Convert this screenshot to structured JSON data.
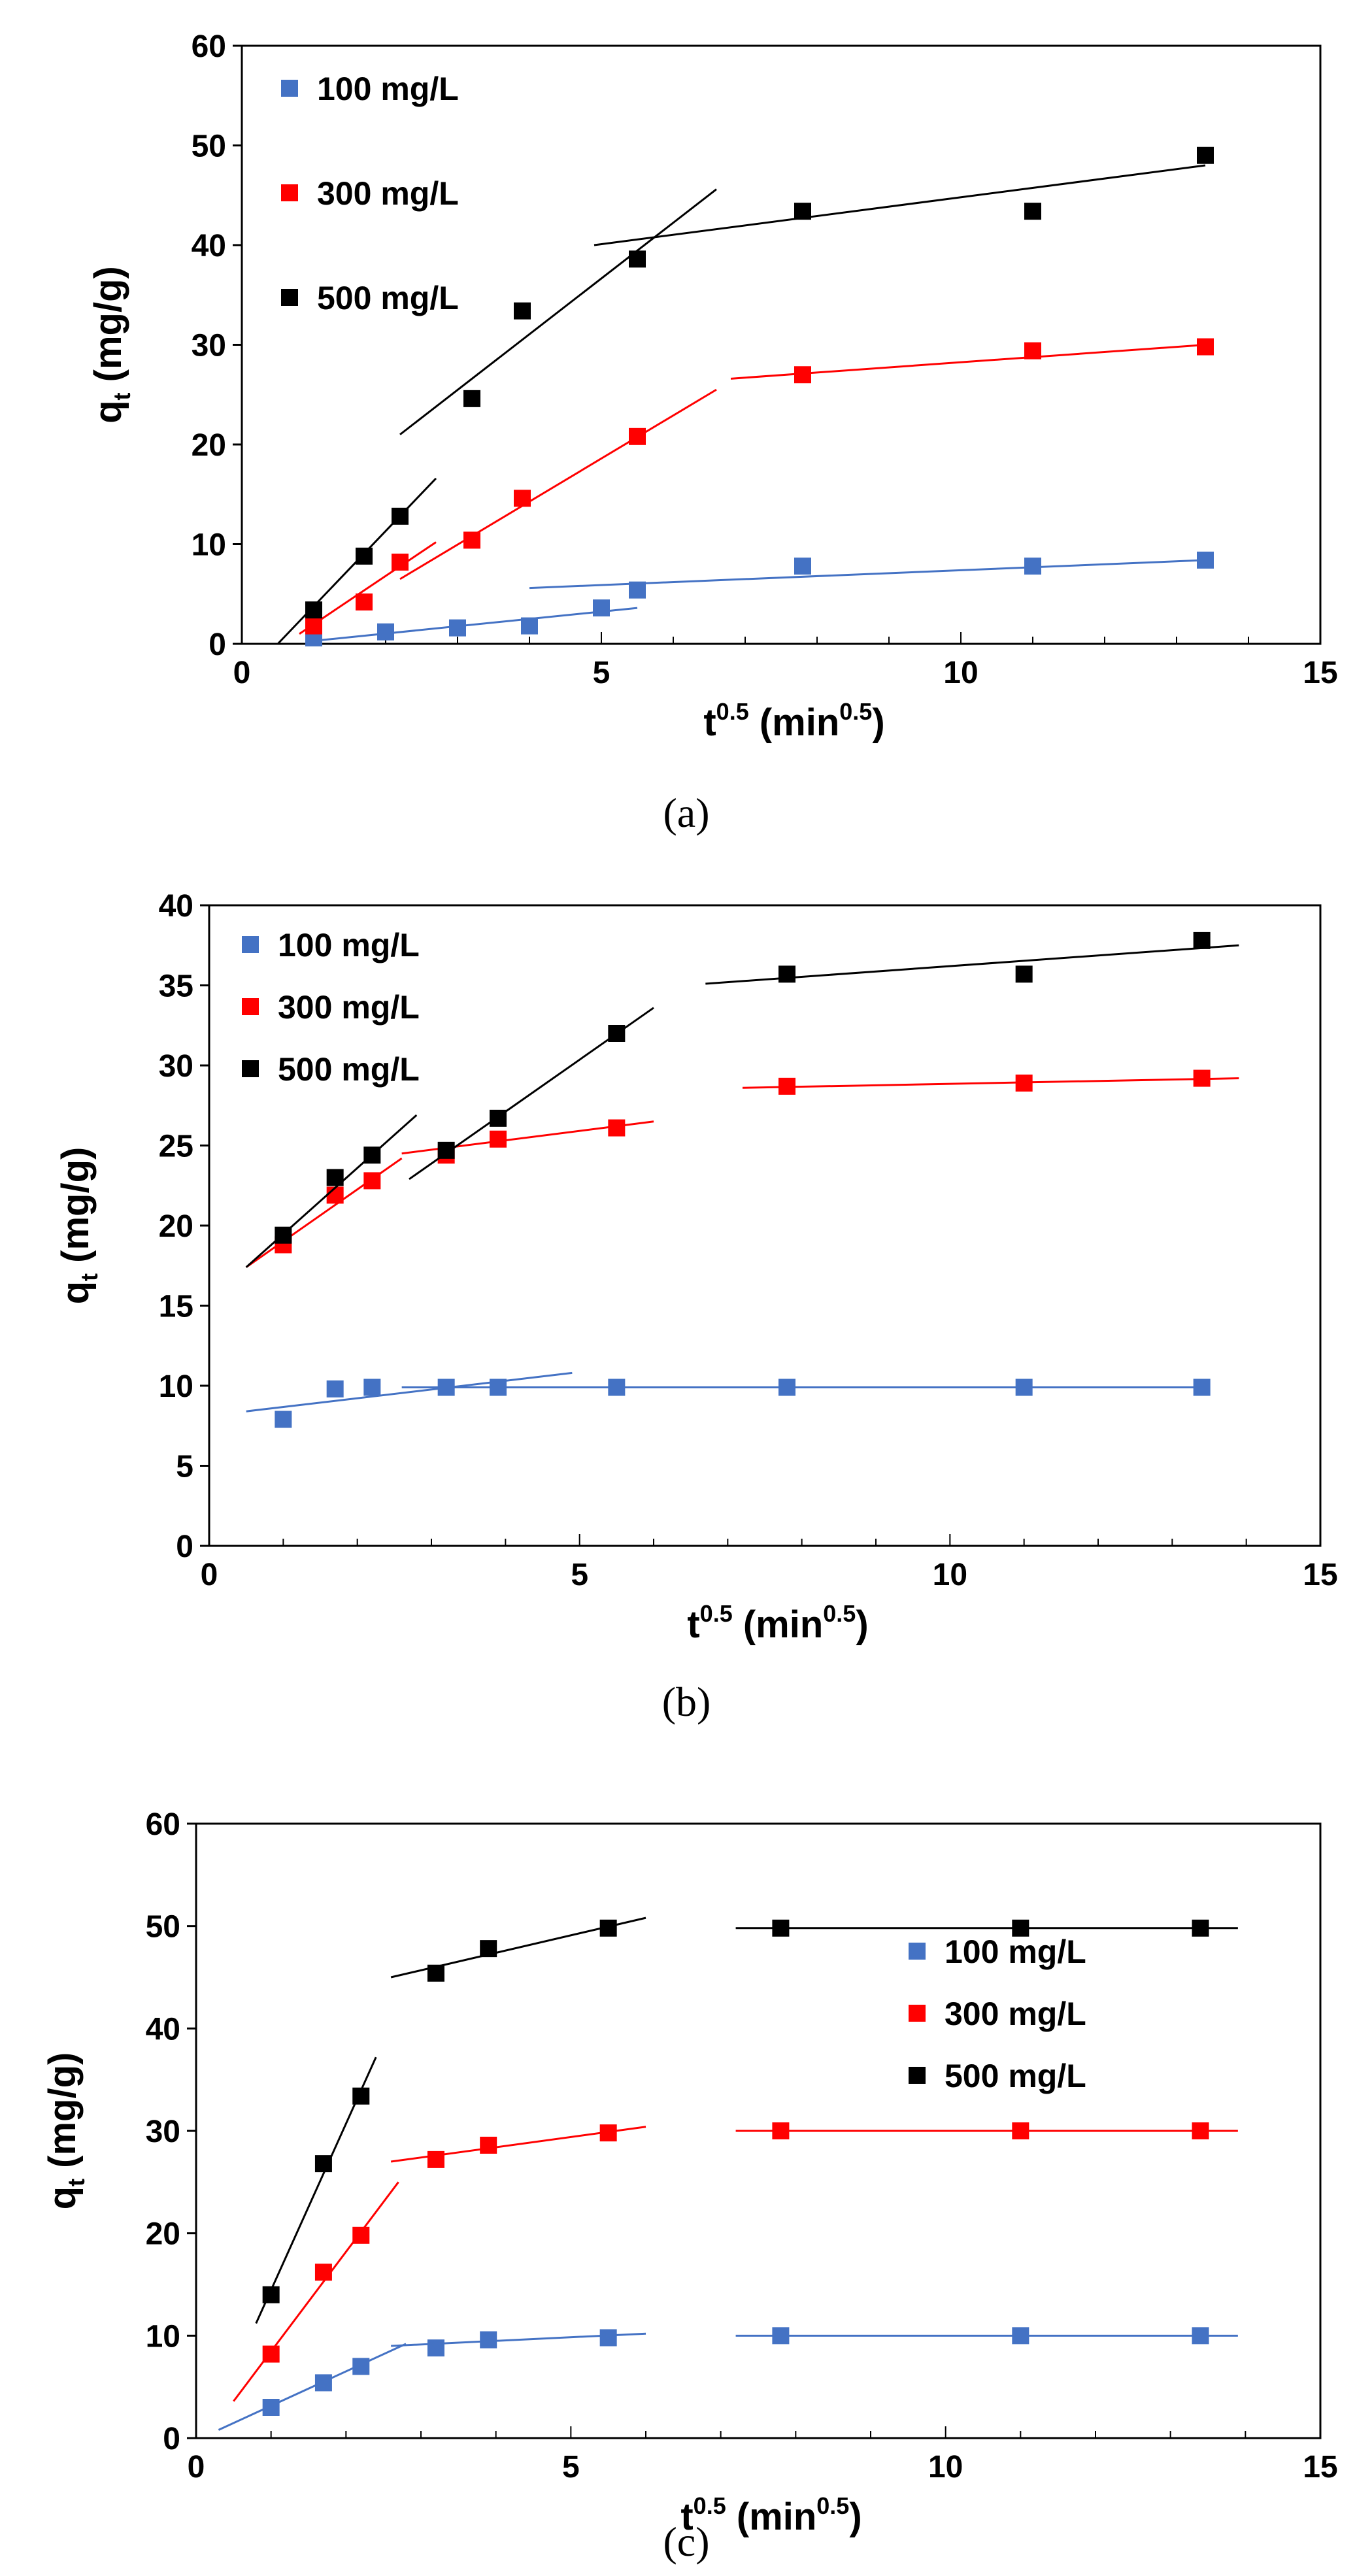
{
  "colors": {
    "c100": "#4472c4",
    "c300": "#ff0000",
    "c500": "#000000"
  },
  "chart_data": [
    {
      "type": "scatter",
      "panel": "a",
      "caption": "(a)",
      "ylabel_main": "q",
      "ylabel_sub": "t",
      "ylabel_unit": " (mg/g)",
      "xlabel_main": "t",
      "xlabel_sup": "0.5",
      "xlabel_mid": " (min",
      "xlabel_sup2": "0.5",
      "xlabel_end": ")",
      "xlim": [
        0,
        15
      ],
      "ylim": [
        0,
        60
      ],
      "xticks": [
        0,
        5,
        10,
        15
      ],
      "yticks": [
        0,
        10,
        20,
        30,
        40,
        50,
        60
      ],
      "xtick_labels": [
        "0",
        "5",
        "10",
        "15"
      ],
      "ytick_labels": [
        "0",
        "10",
        "20",
        "30",
        "40",
        "50",
        "60"
      ],
      "legend_position": "top-left",
      "series": [
        {
          "name": "100 mg/L",
          "color_key": "c100",
          "x": [
            1.0,
            2.0,
            3.0,
            4.0,
            5.0,
            5.5,
            7.8,
            11.0,
            13.4
          ],
          "y": [
            0.6,
            1.2,
            1.6,
            1.8,
            3.6,
            5.4,
            7.8,
            7.8,
            8.4
          ],
          "fits": [
            {
              "x": [
                1.0,
                5.5
              ],
              "y": [
                0.3,
                3.6
              ]
            },
            {
              "x": [
                4.0,
                13.4
              ],
              "y": [
                5.6,
                8.4
              ]
            }
          ]
        },
        {
          "name": "300 mg/L",
          "color_key": "c300",
          "x": [
            1.0,
            1.7,
            2.2,
            3.2,
            3.9,
            5.5,
            7.8,
            11.0,
            13.4
          ],
          "y": [
            1.8,
            4.2,
            8.2,
            10.4,
            14.6,
            20.8,
            27.0,
            29.4,
            29.8
          ],
          "fits": [
            {
              "x": [
                0.8,
                2.7
              ],
              "y": [
                1.0,
                10.2
              ]
            },
            {
              "x": [
                2.2,
                6.6
              ],
              "y": [
                6.5,
                25.5
              ]
            },
            {
              "x": [
                6.8,
                13.4
              ],
              "y": [
                26.6,
                30.0
              ]
            }
          ]
        },
        {
          "name": "500 mg/L",
          "color_key": "c500",
          "x": [
            1.0,
            1.7,
            2.2,
            3.2,
            3.9,
            5.5,
            7.8,
            11.0,
            13.4
          ],
          "y": [
            3.4,
            8.8,
            12.8,
            24.6,
            33.4,
            38.6,
            43.4,
            43.4,
            49.0
          ],
          "fits": [
            {
              "x": [
                0.5,
                2.7
              ],
              "y": [
                0.0,
                16.6
              ]
            },
            {
              "x": [
                2.2,
                6.6
              ],
              "y": [
                21.0,
                45.6
              ]
            },
            {
              "x": [
                4.9,
                13.4
              ],
              "y": [
                40.0,
                48.0
              ]
            }
          ]
        }
      ]
    },
    {
      "type": "scatter",
      "panel": "b",
      "caption": "(b)",
      "ylabel_main": "q",
      "ylabel_sub": "t",
      "ylabel_unit": " (mg/g)",
      "xlabel_main": "t",
      "xlabel_sup": "0.5",
      "xlabel_mid": " (min",
      "xlabel_sup2": "0.5",
      "xlabel_end": ")",
      "xlim": [
        0,
        15
      ],
      "ylim": [
        0,
        40
      ],
      "xticks": [
        0,
        5,
        10,
        15
      ],
      "yticks": [
        0,
        5,
        10,
        15,
        20,
        25,
        30,
        35,
        40
      ],
      "xtick_labels": [
        "0",
        "5",
        "10",
        "15"
      ],
      "ytick_labels": [
        "0",
        "5",
        "10",
        "15",
        "20",
        "25",
        "30",
        "35",
        "40"
      ],
      "legend_position": "top-left",
      "series": [
        {
          "name": "100 mg/L",
          "color_key": "c100",
          "x": [
            1.0,
            1.7,
            2.2,
            3.2,
            3.9,
            5.5,
            7.8,
            11.0,
            13.4
          ],
          "y": [
            7.9,
            9.8,
            9.9,
            9.9,
            9.9,
            9.9,
            9.9,
            9.9,
            9.9
          ],
          "fits": [
            {
              "x": [
                0.5,
                4.9
              ],
              "y": [
                8.4,
                10.8
              ]
            },
            {
              "x": [
                2.6,
                13.4
              ],
              "y": [
                9.9,
                9.9
              ]
            }
          ]
        },
        {
          "name": "300 mg/L",
          "color_key": "c300",
          "x": [
            1.0,
            1.7,
            2.2,
            3.2,
            3.9,
            5.5,
            7.8,
            11.0,
            13.4
          ],
          "y": [
            18.8,
            21.9,
            22.8,
            24.4,
            25.4,
            26.1,
            28.7,
            28.9,
            29.2
          ],
          "fits": [
            {
              "x": [
                0.5,
                2.6
              ],
              "y": [
                17.4,
                24.2
              ]
            },
            {
              "x": [
                2.6,
                6.0
              ],
              "y": [
                24.5,
                26.5
              ]
            },
            {
              "x": [
                7.2,
                13.9
              ],
              "y": [
                28.6,
                29.2
              ]
            }
          ]
        },
        {
          "name": "500 mg/L",
          "color_key": "c500",
          "x": [
            1.0,
            1.7,
            2.2,
            3.2,
            3.9,
            5.5,
            7.8,
            11.0,
            13.4
          ],
          "y": [
            19.4,
            23.0,
            24.4,
            24.7,
            26.7,
            32.0,
            35.7,
            35.7,
            37.8
          ],
          "fits": [
            {
              "x": [
                0.5,
                2.8
              ],
              "y": [
                17.4,
                26.9
              ]
            },
            {
              "x": [
                2.7,
                6.0
              ],
              "y": [
                22.9,
                33.6
              ]
            },
            {
              "x": [
                6.7,
                13.9
              ],
              "y": [
                35.1,
                37.5
              ]
            }
          ]
        }
      ]
    },
    {
      "type": "scatter",
      "panel": "c",
      "caption": "(c)",
      "ylabel_main": "q",
      "ylabel_sub": "t",
      "ylabel_unit": " (mg/g)",
      "xlabel_main": "t",
      "xlabel_sup": "0.5",
      "xlabel_mid": " (min",
      "xlabel_sup2": "0.5",
      "xlabel_end": ")",
      "xlim": [
        0,
        15
      ],
      "ylim": [
        0,
        60
      ],
      "xticks": [
        0,
        5,
        10,
        15
      ],
      "yticks": [
        0,
        10,
        20,
        30,
        40,
        50,
        60
      ],
      "xtick_labels": [
        "0",
        "5",
        "10",
        "15"
      ],
      "ytick_labels": [
        "0",
        "10",
        "20",
        "30",
        "40",
        "50",
        "60"
      ],
      "legend_position": "top-right",
      "series": [
        {
          "name": "100 mg/L",
          "color_key": "c100",
          "x": [
            1.0,
            1.7,
            2.2,
            3.2,
            3.9,
            5.5,
            7.8,
            11.0,
            13.4
          ],
          "y": [
            3.0,
            5.4,
            7.0,
            8.8,
            9.6,
            9.8,
            10.0,
            10.0,
            10.0
          ],
          "fits": [
            {
              "x": [
                0.3,
                2.8
              ],
              "y": [
                0.8,
                9.2
              ]
            },
            {
              "x": [
                2.6,
                6.0
              ],
              "y": [
                9.0,
                10.2
              ]
            },
            {
              "x": [
                7.2,
                13.9
              ],
              "y": [
                10.0,
                10.0
              ]
            }
          ]
        },
        {
          "name": "300 mg/L",
          "color_key": "c300",
          "x": [
            1.0,
            1.7,
            2.2,
            3.2,
            3.9,
            5.5,
            7.8,
            11.0,
            13.4
          ],
          "y": [
            8.2,
            16.2,
            19.8,
            27.2,
            28.6,
            29.8,
            30.0,
            30.0,
            30.0
          ],
          "fits": [
            {
              "x": [
                0.5,
                2.7
              ],
              "y": [
                3.6,
                25.0
              ]
            },
            {
              "x": [
                2.6,
                6.0
              ],
              "y": [
                27.0,
                30.4
              ]
            },
            {
              "x": [
                7.2,
                13.9
              ],
              "y": [
                30.0,
                30.0
              ]
            }
          ]
        },
        {
          "name": "500 mg/L",
          "color_key": "c500",
          "x": [
            1.0,
            1.7,
            2.2,
            3.2,
            3.9,
            5.5,
            7.8,
            11.0,
            13.4
          ],
          "y": [
            14.0,
            26.8,
            33.4,
            45.4,
            47.8,
            49.8,
            49.8,
            49.8,
            49.8
          ],
          "fits": [
            {
              "x": [
                0.8,
                2.4
              ],
              "y": [
                11.2,
                37.2
              ]
            },
            {
              "x": [
                2.6,
                6.0
              ],
              "y": [
                45.0,
                50.8
              ]
            },
            {
              "x": [
                7.2,
                13.9
              ],
              "y": [
                49.8,
                49.8
              ]
            }
          ]
        }
      ]
    }
  ]
}
